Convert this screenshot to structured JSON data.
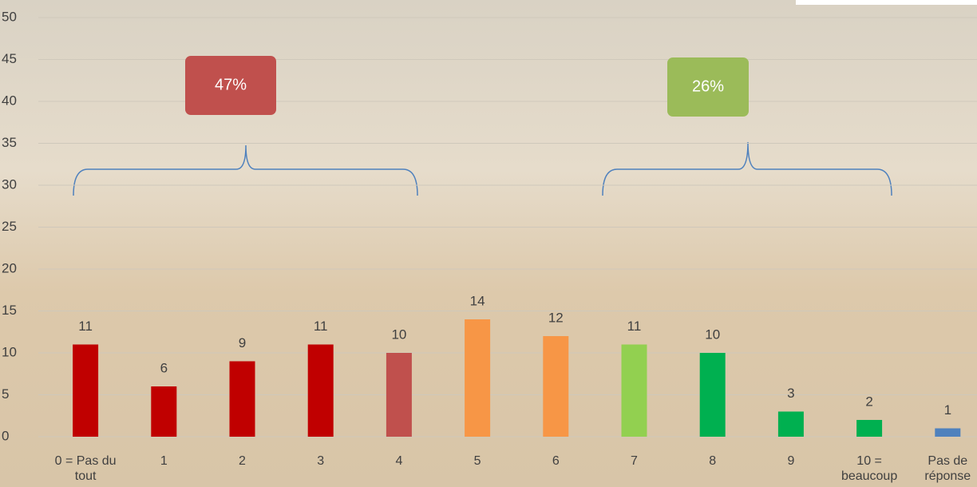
{
  "chart_data": {
    "type": "bar",
    "categories": [
      "0 = Pas du tout",
      "1",
      "2",
      "3",
      "4",
      "5",
      "6",
      "7",
      "8",
      "9",
      "10 = beaucoup",
      "Pas de réponse"
    ],
    "values": [
      11,
      6,
      9,
      11,
      10,
      14,
      12,
      11,
      10,
      3,
      2,
      1
    ],
    "colors": [
      "#c00000",
      "#c00000",
      "#c00000",
      "#c00000",
      "#c0504d",
      "#f79646",
      "#f79646",
      "#92d050",
      "#00b050",
      "#00b050",
      "#00b050",
      "#4f81bd"
    ],
    "ylim": [
      0,
      50
    ],
    "yticks": [
      0,
      5,
      10,
      15,
      20,
      25,
      30,
      35,
      40,
      45,
      50
    ],
    "grid": true,
    "annotations": [
      {
        "text": "47%",
        "color": "#c0504d"
      },
      {
        "text": "26%",
        "color": "#9bbb59"
      }
    ]
  }
}
